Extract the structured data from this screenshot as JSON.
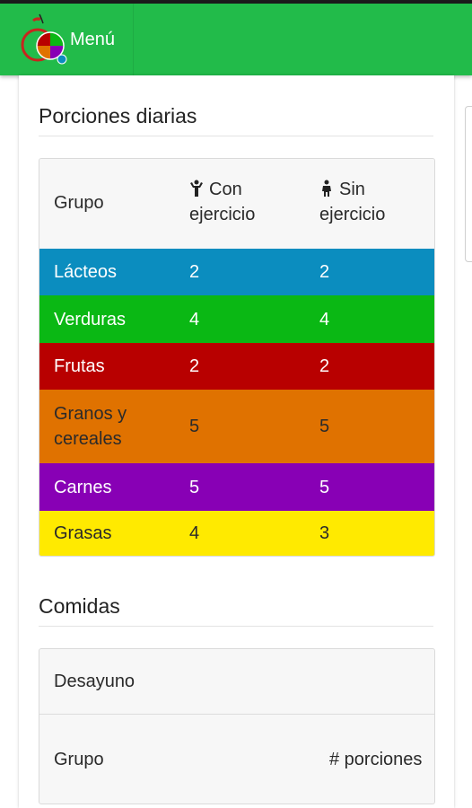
{
  "navbar": {
    "menu_label": "Menú",
    "logo_icon": "food-plate-logo-icon"
  },
  "colors": {
    "nav": "#22bb4a",
    "lacteos": "#0b8dbf",
    "verduras": "#0ab814",
    "frutas": "#b80000",
    "granos": "#e07200",
    "carnes": "#8800b5",
    "grasas": "#ffea00"
  },
  "porciones": {
    "title": "Porciones diarias",
    "headers": {
      "grupo": "Grupo",
      "con": "Con ejercicio",
      "sin": "Sin ejercicio"
    },
    "header_icons": {
      "con": "person-exercise-icon",
      "sin": "person-standing-icon"
    },
    "rows": [
      {
        "grupo": "Lácteos",
        "con": "2",
        "sin": "2"
      },
      {
        "grupo": "Verduras",
        "con": "4",
        "sin": "4"
      },
      {
        "grupo": "Frutas",
        "con": "2",
        "sin": "2"
      },
      {
        "grupo": "Granos y cereales",
        "con": "5",
        "sin": "5"
      },
      {
        "grupo": "Carnes",
        "con": "5",
        "sin": "5"
      },
      {
        "grupo": "Grasas",
        "con": "4",
        "sin": "3"
      }
    ]
  },
  "comidas": {
    "title": "Comidas",
    "meal": "Desayuno",
    "headers": {
      "grupo": "Grupo",
      "porciones": "# porciones"
    }
  }
}
